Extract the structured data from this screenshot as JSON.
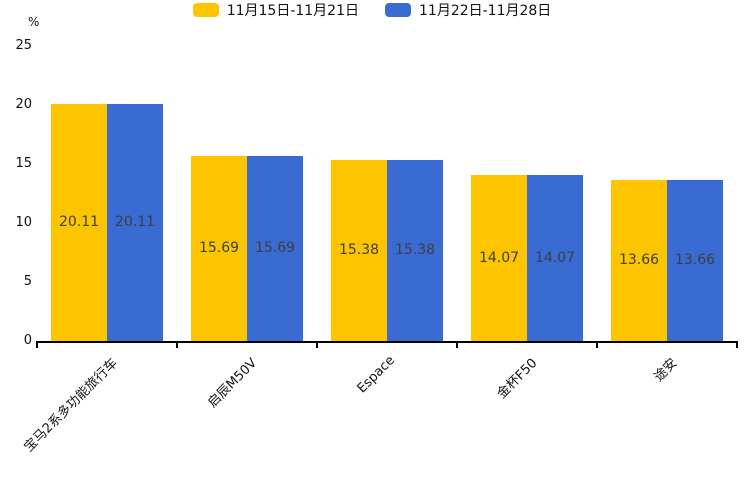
{
  "chart_data": {
    "type": "bar",
    "title": "",
    "unit_label": "%",
    "categories": [
      "宝马2系多功能旅行车",
      "启辰M50V",
      "Espace",
      "金杯F50",
      "途安"
    ],
    "series": [
      {
        "name": "11月15日-11月21日",
        "color": "#FDC500",
        "values": [
          20.11,
          15.69,
          15.38,
          14.07,
          13.66
        ]
      },
      {
        "name": "11月22日-11月28日",
        "color": "#3A6BD2",
        "values": [
          20.11,
          15.69,
          15.38,
          14.07,
          13.66
        ]
      }
    ],
    "value_labels": [
      [
        "20.11",
        "15.69",
        "15.38",
        "14.07",
        "13.66"
      ],
      [
        "20.11",
        "15.69",
        "15.38",
        "14.07",
        "13.66"
      ]
    ],
    "ylim": [
      0,
      25
    ],
    "yticks": [
      "0",
      "5",
      "10",
      "15",
      "20",
      "25"
    ],
    "grid": false,
    "legend_position": "top-center",
    "colors": {
      "axis": "#000000",
      "value_label": "#3d3d3d",
      "text": "#111111"
    }
  }
}
